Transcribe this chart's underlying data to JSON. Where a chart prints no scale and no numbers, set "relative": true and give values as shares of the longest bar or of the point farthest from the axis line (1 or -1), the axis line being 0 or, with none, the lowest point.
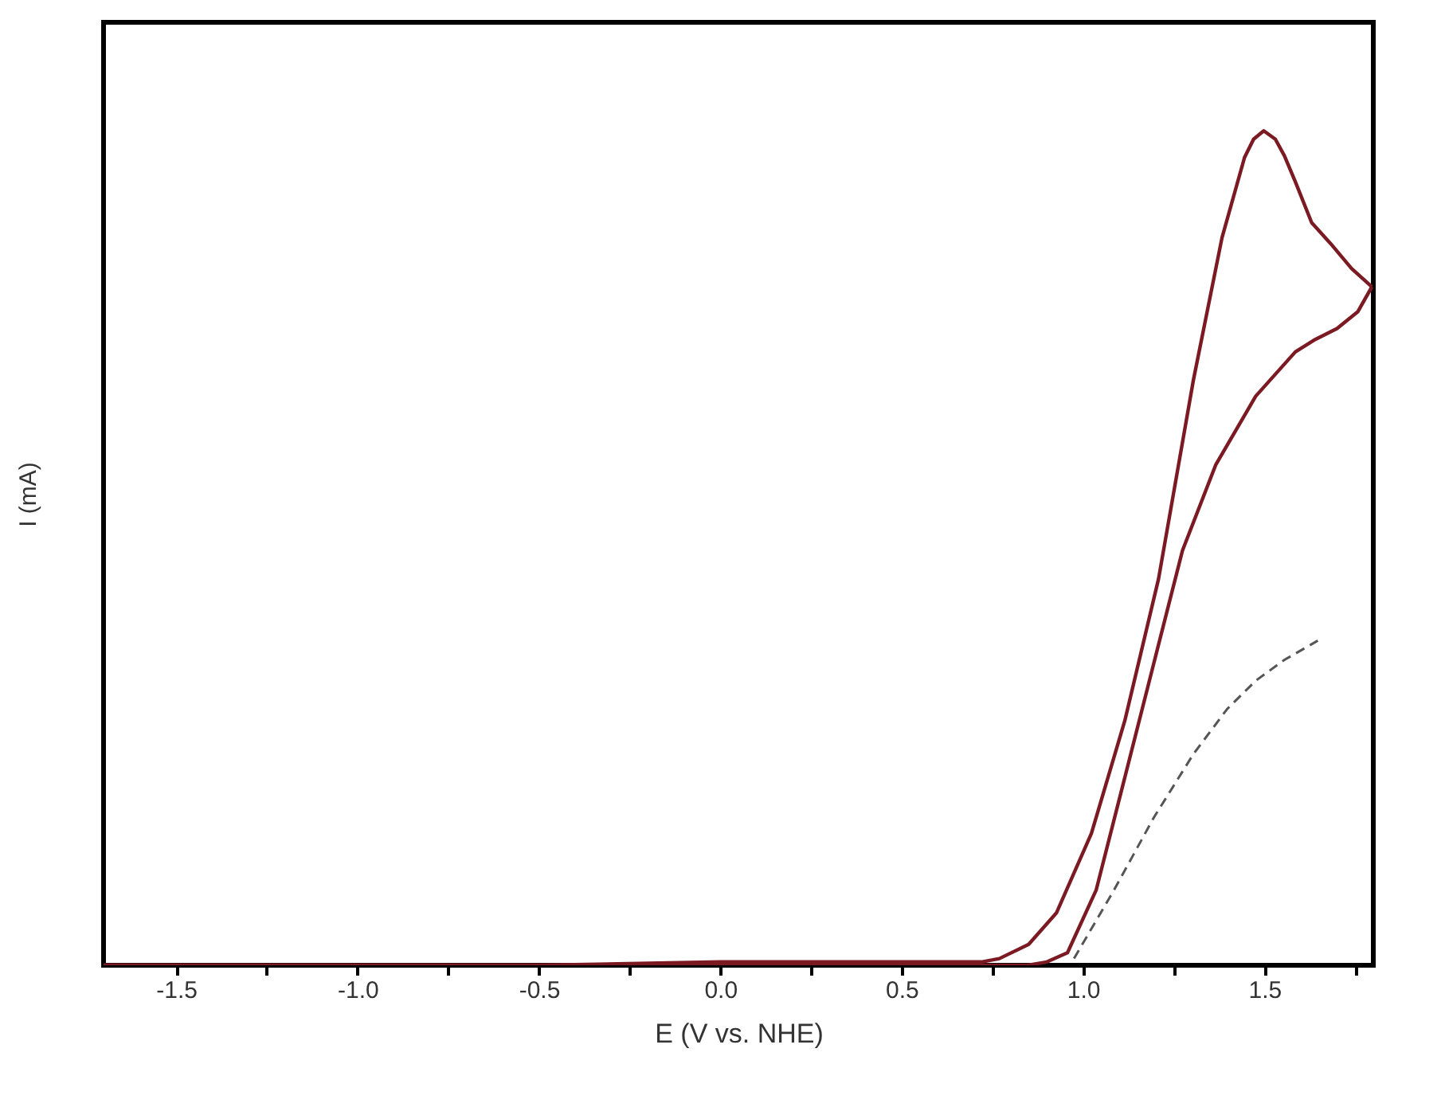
{
  "chart_data": {
    "type": "line",
    "relative": true,
    "xlabel": "E (V vs. NHE)",
    "ylabel": "I (mA)",
    "xlim": [
      -1.7,
      1.8
    ],
    "xticks": [
      -1.5,
      {
        "value": -1.25,
        "label": null
      },
      {
        "value": -1,
        "label": "-1.0"
      },
      {
        "value": -0.75,
        "label": null
      },
      -0.5,
      {
        "value": -0.25,
        "label": null
      },
      {
        "value": 0,
        "label": "0.0"
      },
      {
        "value": 0.25,
        "label": null
      },
      0.5,
      {
        "value": 0.75,
        "label": null
      },
      {
        "value": 1,
        "label": "1.0"
      },
      {
        "value": 1.25,
        "label": null
      },
      1.5,
      {
        "value": 1.75,
        "label": null
      }
    ],
    "marker": "none",
    "series": [
      {
        "color": "#7b1a22",
        "line_style": "solid",
        "x": [
          -1.7,
          -0.5,
          0.0,
          0.6,
          0.72,
          0.769,
          0.85,
          0.927,
          1.023,
          1.115,
          1.208,
          1.304,
          1.383,
          1.445,
          1.47,
          1.498,
          1.53,
          1.555,
          1.585,
          1.63,
          1.682,
          1.74,
          1.796
        ],
        "values": [
          0,
          0,
          0.004,
          0.004,
          0.004,
          0.008,
          0.025,
          0.063,
          0.158,
          0.293,
          0.463,
          0.701,
          0.872,
          0.968,
          0.99,
          1.0,
          0.99,
          0.97,
          0.939,
          0.89,
          0.865,
          0.835,
          0.813
        ]
      },
      {
        "color": "#7b1a22",
        "line_style": "solid",
        "x": [
          1.796,
          1.757,
          1.7,
          1.64,
          1.585,
          1.476,
          1.366,
          1.274,
          1.195,
          1.115,
          1.036,
          0.957,
          0.9,
          0.848,
          0.0,
          -1.7
        ],
        "values": [
          0.813,
          0.783,
          0.763,
          0.75,
          0.735,
          0.682,
          0.6,
          0.497,
          0.362,
          0.225,
          0.09,
          0.015,
          0.004,
          0,
          0,
          0
        ]
      },
      {
        "color": "#555555",
        "line_style": "dashed",
        "x": [
          0.975,
          1.085,
          1.195,
          1.304,
          1.397,
          1.476,
          1.555,
          1.647
        ],
        "values": [
          0.008,
          0.09,
          0.177,
          0.253,
          0.307,
          0.341,
          0.366,
          0.389
        ]
      }
    ]
  }
}
